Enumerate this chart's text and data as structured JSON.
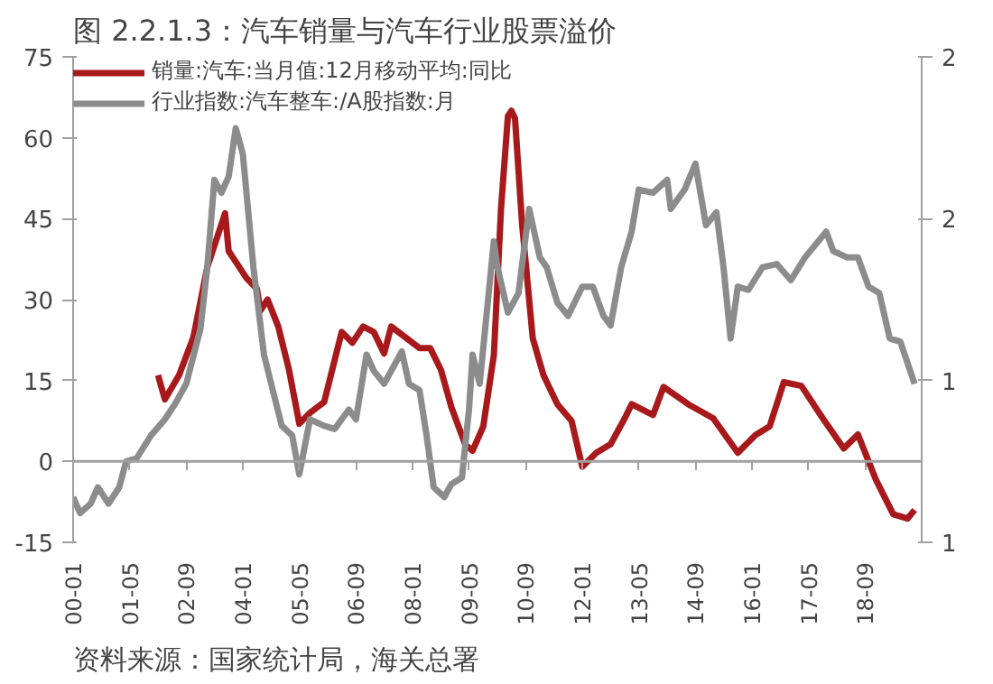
{
  "chart_data": {
    "type": "line",
    "title": "图 2.2.1.3：汽车销量与汽车行业股票溢价",
    "annotations": [
      "资料来源：国家统计局，海关总署"
    ],
    "xlim": [
      "2000-01",
      "2020-01"
    ],
    "xticks": [
      {
        "value": "2000-01",
        "label": "00-01"
      },
      {
        "value": "2001-05",
        "label": "01-05"
      },
      {
        "value": "2002-09",
        "label": "02-09"
      },
      {
        "value": "2004-01",
        "label": "04-01"
      },
      {
        "value": "2005-05",
        "label": "05-05"
      },
      {
        "value": "2006-09",
        "label": "06-09"
      },
      {
        "value": "2008-01",
        "label": "08-01"
      },
      {
        "value": "2009-05",
        "label": "09-05"
      },
      {
        "value": "2010-09",
        "label": "10-09"
      },
      {
        "value": "2012-01",
        "label": "12-01"
      },
      {
        "value": "2013-05",
        "label": "13-05"
      },
      {
        "value": "2014-09",
        "label": "14-09"
      },
      {
        "value": "2016-01",
        "label": "16-01"
      },
      {
        "value": "2017-05",
        "label": "17-05"
      },
      {
        "value": "2018-09",
        "label": "18-09"
      }
    ],
    "ylim": [
      -15,
      75
    ],
    "yticks": [
      -15,
      0,
      15,
      30,
      45,
      60,
      75
    ],
    "y2lim": [
      0.5,
      2.0
    ],
    "y2ticks": [
      {
        "value": 0.5,
        "label": "1"
      },
      {
        "value": 1.0,
        "label": "1"
      },
      {
        "value": 1.5,
        "label": "2"
      },
      {
        "value": 2.0,
        "label": "2"
      }
    ],
    "grid": false,
    "legend": "top left",
    "ref_lines": [
      {
        "axis": "y",
        "value": 0,
        "color": "#a0a0a0"
      }
    ],
    "series": [
      {
        "name": "销量:汽车:当月值:12月移动平均:同比",
        "color": "#a8191c",
        "x": [
          "2002-01",
          "2002-03",
          "2002-07",
          "2002-11",
          "2003-03",
          "2003-08",
          "2003-09",
          "2004-02",
          "2004-05",
          "2004-06",
          "2004-08",
          "2004-11",
          "2005-02",
          "2005-05",
          "2005-08",
          "2005-12",
          "2006-05",
          "2006-08",
          "2006-11",
          "2007-02",
          "2007-05",
          "2007-07",
          "2007-11",
          "2008-03",
          "2008-06",
          "2008-09",
          "2008-12",
          "2009-04",
          "2009-06",
          "2009-09",
          "2009-12",
          "2010-02",
          "2010-04",
          "2010-05",
          "2010-06",
          "2010-08",
          "2010-11",
          "2011-02",
          "2011-06",
          "2011-10",
          "2012-01",
          "2012-05",
          "2012-09",
          "2013-01",
          "2013-03",
          "2013-09",
          "2013-12",
          "2014-07",
          "2015-02",
          "2015-09",
          "2016-02",
          "2016-06",
          "2016-10",
          "2017-03",
          "2017-09",
          "2018-03",
          "2018-07",
          "2018-12",
          "2019-05",
          "2019-09",
          "2019-11"
        ],
        "values": [
          16,
          11.5,
          16,
          23,
          36,
          46,
          39,
          34,
          32,
          28,
          30,
          25,
          17,
          7,
          9,
          11,
          24,
          22,
          25,
          24,
          20,
          25,
          23,
          21,
          21,
          17,
          10,
          3,
          2,
          6.5,
          19.7,
          47,
          64,
          65,
          63.6,
          44,
          22.8,
          16,
          10.6,
          7.5,
          -1,
          1.6,
          3.2,
          8,
          10.6,
          8.6,
          13.8,
          10.6,
          8,
          1.6,
          4.9,
          6.5,
          14.7,
          14,
          8,
          2.4,
          5,
          -3.3,
          -9.8,
          -10.6,
          -9
        ]
      },
      {
        "name": "行业指数:汽车整车:/A股指数:月",
        "color": "#8c8c8c",
        "axis": "y2",
        "x": [
          "2000-01",
          "2000-03",
          "2000-06",
          "2000-08",
          "2000-11",
          "2001-02",
          "2001-04",
          "2001-07",
          "2001-11",
          "2002-03",
          "2002-06",
          "2002-09",
          "2003-01",
          "2003-03",
          "2003-05",
          "2003-07",
          "2003-09",
          "2003-11",
          "2004-01",
          "2004-04",
          "2004-07",
          "2004-09",
          "2004-12",
          "2005-03",
          "2005-05",
          "2005-08",
          "2005-12",
          "2006-03",
          "2006-07",
          "2006-09",
          "2006-12",
          "2007-02",
          "2007-05",
          "2007-08",
          "2007-10",
          "2007-12",
          "2008-03",
          "2008-05",
          "2008-07",
          "2008-10",
          "2008-12",
          "2009-03",
          "2009-05",
          "2009-06",
          "2009-08",
          "2009-10",
          "2009-12",
          "2010-01",
          "2010-04",
          "2010-07",
          "2010-10",
          "2011-01",
          "2011-03",
          "2011-06",
          "2011-09",
          "2012-01",
          "2012-04",
          "2012-07",
          "2012-09",
          "2012-12",
          "2013-03",
          "2013-05",
          "2013-09",
          "2014-01",
          "2014-02",
          "2014-06",
          "2014-09",
          "2014-12",
          "2015-03",
          "2015-05",
          "2015-07",
          "2015-09",
          "2015-12",
          "2016-04",
          "2016-08",
          "2016-12",
          "2017-04",
          "2017-10",
          "2017-12",
          "2018-04",
          "2018-07",
          "2018-10",
          "2019-01",
          "2019-04",
          "2019-07",
          "2019-11"
        ],
        "values": [
          0.64,
          0.59,
          0.62,
          0.67,
          0.62,
          0.67,
          0.75,
          0.76,
          0.83,
          0.88,
          0.93,
          0.99,
          1.16,
          1.35,
          1.62,
          1.58,
          1.63,
          1.78,
          1.7,
          1.35,
          1.08,
          0.99,
          0.86,
          0.83,
          0.71,
          0.88,
          0.86,
          0.85,
          0.91,
          0.88,
          1.08,
          1.03,
          0.99,
          1.05,
          1.09,
          0.99,
          0.97,
          0.83,
          0.67,
          0.64,
          0.68,
          0.7,
          0.91,
          1.08,
          0.99,
          1.21,
          1.43,
          1.35,
          1.21,
          1.27,
          1.53,
          1.38,
          1.35,
          1.24,
          1.2,
          1.29,
          1.29,
          1.2,
          1.17,
          1.35,
          1.46,
          1.59,
          1.58,
          1.62,
          1.53,
          1.59,
          1.67,
          1.48,
          1.52,
          1.35,
          1.13,
          1.29,
          1.28,
          1.35,
          1.36,
          1.31,
          1.38,
          1.46,
          1.4,
          1.38,
          1.38,
          1.29,
          1.27,
          1.13,
          1.12,
          0.99
        ]
      }
    ]
  }
}
